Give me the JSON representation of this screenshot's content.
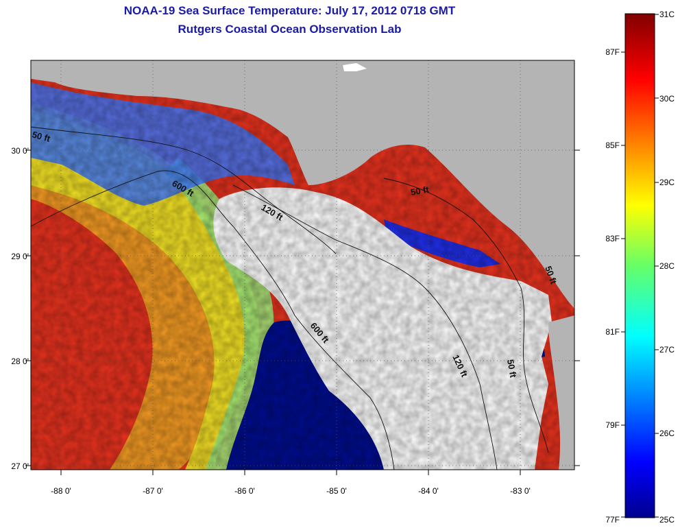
{
  "title": "NOAA-19 Sea Surface Temperature:  July 17, 2012 0718 GMT",
  "subtitle": "Rutgers Coastal Ocean Observation Lab",
  "lat_labels": [
    "30 0'",
    "29 0'",
    "28 0'",
    "27 0'"
  ],
  "lon_labels": [
    "-88 0'",
    "-87 0'",
    "-86 0'",
    "-85 0'",
    "-84 0'",
    "-83 0'"
  ],
  "contour_labels": [
    "50 ft",
    "600 ft",
    "120 ft",
    "50 ft",
    "600 ft",
    "120 ft",
    "50 ft",
    "50 ft"
  ],
  "colorbar": {
    "celsius_labels": [
      "31C",
      "30C",
      "29C",
      "28C",
      "27C",
      "26C",
      "25C"
    ],
    "fahrenheit_labels": [
      "87F",
      "85F",
      "83F",
      "81F",
      "79F",
      "77F"
    ],
    "celsius_range": [
      25,
      31
    ],
    "colormap": "jet"
  },
  "colors": {
    "title": "#1a1aa6",
    "land": "#b4b4b4",
    "cloud_mask": "#ffffff",
    "warm": "#e8321e",
    "cool": "#000d8f"
  }
}
